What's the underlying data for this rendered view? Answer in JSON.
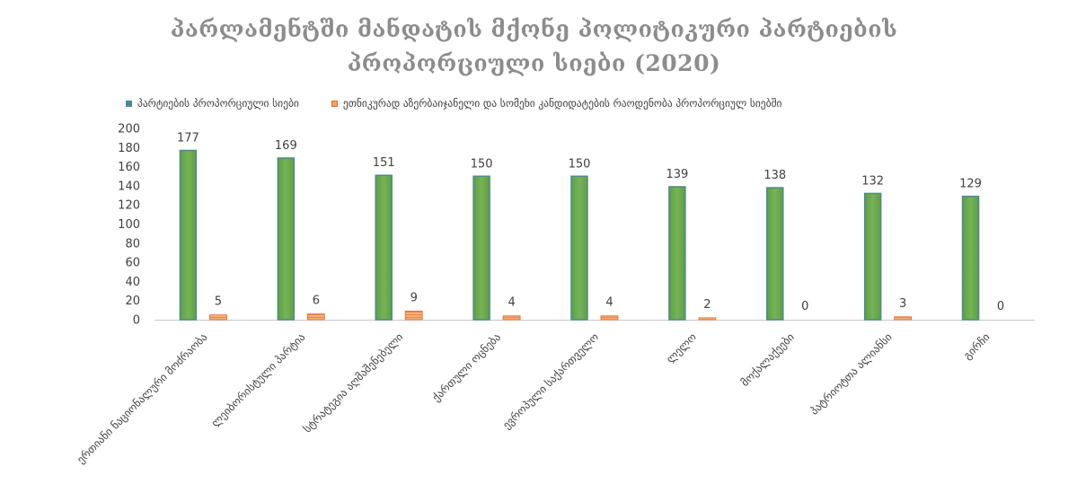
{
  "chart_data": {
    "type": "bar",
    "title_lines": [
      "პარლამენტში მანდატის მქონე პოლიტიკური პარტიების",
      "პროპორციული სიები (2020)"
    ],
    "categories": [
      "ერთიანი ნაციონალური მოძრაობა",
      "ლეიბორისტული პარტია",
      "სტრატეგია აღმაშენებელი",
      "ქართული ოცნება",
      "ევროპული საქართველო",
      "ლელო",
      "მოქალაქეები",
      "პატრიოტთა ალიანსი",
      "გირჩი"
    ],
    "series": [
      {
        "name": "პარტიების პროპორციული სიები",
        "values": [
          177,
          169,
          151,
          150,
          150,
          139,
          138,
          132,
          129
        ],
        "color": "#6aa84f",
        "edge": "#4a8c8c"
      },
      {
        "name": "ეთნიკურად აზერბაიჯანელი და სომეხი კანდიდატების რაოდენობა პროპორციულ სიებში",
        "values": [
          5,
          6,
          9,
          4,
          4,
          2,
          0,
          3,
          0
        ],
        "color": "#f4a460",
        "edge": "#e06a2a"
      }
    ],
    "ylim": [
      0,
      200
    ],
    "yticks": [
      0,
      20,
      40,
      60,
      80,
      100,
      120,
      140,
      160,
      180,
      200
    ],
    "grid": false,
    "legend_position": "top-left",
    "data_labels": true
  }
}
